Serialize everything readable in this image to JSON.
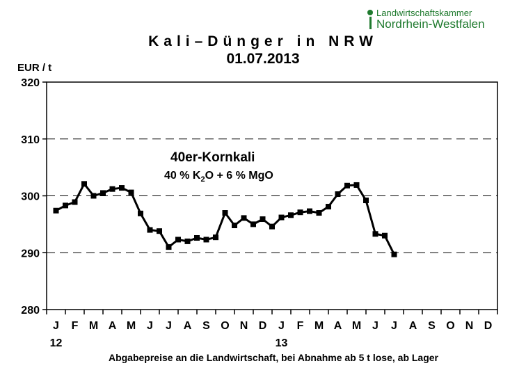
{
  "header": {
    "logo_line1": "Landwirtschaftskammer",
    "logo_line2": "Nordrhein-Westfalen",
    "brand_color": "#1f7a2e"
  },
  "footer": {
    "note": "Abgabepreise an die Landwirtschaft, bei Abnahme ab 5 t lose, ab Lager"
  },
  "chart_data": {
    "type": "line",
    "title": "Kali–Dünger in NRW",
    "subtitle": "01.07.2013",
    "ylabel": "EUR / t",
    "xlabel": "",
    "ylim": [
      280,
      320
    ],
    "yticks": [
      280,
      290,
      300,
      310,
      320
    ],
    "grid_y_dashed": [
      290,
      300,
      310
    ],
    "month_labels": [
      "J",
      "F",
      "M",
      "A",
      "M",
      "J",
      "J",
      "A",
      "S",
      "O",
      "N",
      "D",
      "J",
      "F",
      "M",
      "A",
      "M",
      "J",
      "J",
      "A",
      "S",
      "O",
      "N",
      "D"
    ],
    "year_labels": [
      {
        "month_index": 0,
        "label": "12"
      },
      {
        "month_index": 12,
        "label": "13"
      }
    ],
    "annotation": {
      "product": "40er-Kornkali",
      "composition_prefix": "40 %  K",
      "composition_sub": "2",
      "composition_suffix": "O + 6 % MgO"
    },
    "series": [
      {
        "name": "40er-Kornkali",
        "color": "#000000",
        "x": [
          0,
          0.5,
          1,
          1.5,
          2,
          2.5,
          3,
          3.5,
          4,
          4.5,
          5,
          5.5,
          6,
          6.5,
          7,
          7.5,
          8,
          8.5,
          9,
          9.5,
          10,
          10.5,
          11,
          11.5,
          12,
          12.5,
          13,
          13.5,
          14,
          14.5,
          15,
          15.5,
          16,
          16.5,
          17,
          17.5,
          18
        ],
        "values": [
          297.4,
          298.3,
          298.9,
          302.1,
          300.0,
          300.5,
          301.2,
          301.4,
          300.6,
          296.9,
          294.0,
          293.8,
          291.0,
          292.3,
          292.0,
          292.6,
          292.3,
          292.7,
          297.0,
          294.8,
          296.1,
          295.0,
          295.9,
          294.6,
          296.2,
          296.6,
          297.1,
          297.3,
          297.0,
          298.1,
          300.3,
          301.8,
          301.9,
          299.2,
          293.3,
          293.0,
          289.7
        ]
      }
    ]
  }
}
